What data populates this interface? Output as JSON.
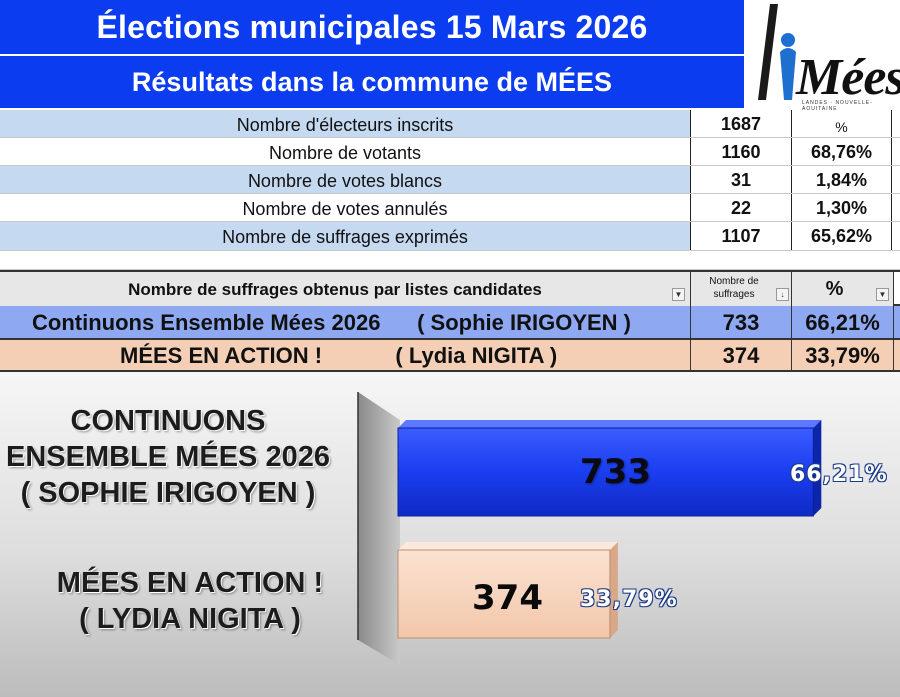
{
  "header": {
    "title": "Élections municipales  15 Mars 2026",
    "subtitle": "Résultats dans la commune de MÉES"
  },
  "logo": {
    "name": "Mées",
    "tagline": "LANDES · NOUVELLE-AQUITAINE"
  },
  "stats": [
    {
      "label": "Nombre d'électeurs inscrits",
      "value": "1687",
      "percent": "%"
    },
    {
      "label": "Nombre de votants",
      "value": "1160",
      "percent": "68,76%"
    },
    {
      "label": "Nombre de votes blancs",
      "value": "31",
      "percent": "1,84%"
    },
    {
      "label": "Nombre de votes annulés",
      "value": "22",
      "percent": "1,30%"
    },
    {
      "label": "Nombre de suffrages exprimés",
      "value": "1107",
      "percent": "65,62%"
    }
  ],
  "candidates_table": {
    "header_label": "Nombre de suffrages obtenus par listes candidates",
    "header_value_line1": "Nombre de",
    "header_value_line2": "suffrages",
    "header_percent": "%",
    "rows": [
      {
        "label": "Continuons Ensemble Mées 2026      ( Sophie IRIGOYEN )",
        "value": "733",
        "percent": "66,21%"
      },
      {
        "label": "MÉES EN ACTION !            ( Lydia NIGITA )",
        "value": "374",
        "percent": "33,79%"
      }
    ]
  },
  "chart_data": {
    "type": "bar",
    "orientation": "horizontal",
    "categories": [
      "CONTINUONS ENSEMBLE MÉES 2026 ( SOPHIE IRIGOYEN )",
      "MÉES EN ACTION ! ( LYDIA NIGITA )"
    ],
    "category_lines": [
      [
        "CONTINUONS",
        "ENSEMBLE MÉES 2026",
        "( SOPHIE IRIGOYEN )"
      ],
      [
        "MÉES EN ACTION !",
        "( LYDIA NIGITA )"
      ]
    ],
    "values": [
      733,
      374
    ],
    "value_labels": [
      "733",
      "374"
    ],
    "percent_labels": [
      "66,21%",
      "33,79%"
    ],
    "colors": [
      "#1a3ef0",
      "#f7d2bb"
    ],
    "xlim": [
      0,
      766
    ],
    "title": "",
    "xlabel": "",
    "ylabel": ""
  }
}
